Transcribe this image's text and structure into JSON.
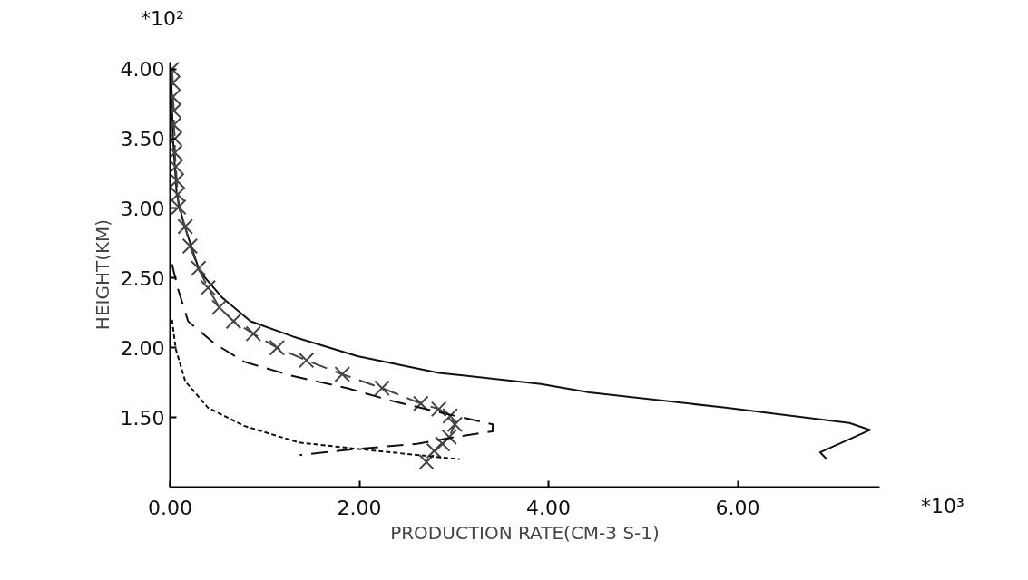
{
  "chart_data": {
    "type": "line",
    "xlabel": "PRODUCTION RATE(CM-3 S-1)",
    "ylabel": "HEIGHT(KM)",
    "annotations": [
      "*10²",
      "*10³"
    ],
    "xlim": [
      0,
      7.5
    ],
    "ylim": [
      1.0,
      4.05
    ],
    "xticks": [
      {
        "value": 0,
        "label": "0.00"
      },
      {
        "value": 2,
        "label": "2.00"
      },
      {
        "value": 4,
        "label": "4.00"
      },
      {
        "value": 6,
        "label": "6.00"
      }
    ],
    "yticks": [
      {
        "value": 1.5,
        "label": "1.50"
      },
      {
        "value": 2,
        "label": "2.00"
      },
      {
        "value": 2.5,
        "label": "2.50"
      },
      {
        "value": 3,
        "label": "3.00"
      },
      {
        "value": 3.5,
        "label": "3.50"
      },
      {
        "value": 4,
        "label": "4.00"
      }
    ],
    "grid": false,
    "series": [
      {
        "color": "#111111",
        "line_style": "solid",
        "marker": "none",
        "x": [
          0.01,
          0.03,
          0.07,
          0.14,
          0.31,
          0.55,
          0.85,
          1.3,
          1.98,
          2.84,
          3.92,
          4.43,
          5.87,
          7.18,
          7.4,
          6.87,
          6.94
        ],
        "values": [
          4.0,
          3.5,
          3.1,
          2.9,
          2.55,
          2.36,
          2.19,
          2.08,
          1.94,
          1.82,
          1.74,
          1.68,
          1.57,
          1.46,
          1.41,
          1.25,
          1.2
        ]
      },
      {
        "color": "#444444",
        "line_style": "dashed",
        "marker": "cross",
        "x": [
          0.02,
          0.03,
          0.03,
          0.04,
          0.04,
          0.05,
          0.05,
          0.06,
          0.07,
          0.08,
          0.09,
          0.16,
          0.21,
          0.3,
          0.4,
          0.52,
          0.67,
          0.88,
          1.13,
          1.44,
          1.82,
          2.24,
          2.65,
          2.84,
          2.96,
          3.01,
          2.95,
          2.88,
          2.79,
          2.71
        ],
        "values": [
          4.0,
          3.9,
          3.8,
          3.7,
          3.6,
          3.5,
          3.4,
          3.3,
          3.2,
          3.1,
          3.01,
          2.87,
          2.73,
          2.57,
          2.43,
          2.29,
          2.19,
          2.1,
          2.0,
          1.91,
          1.81,
          1.71,
          1.6,
          1.56,
          1.51,
          1.45,
          1.36,
          1.31,
          1.26,
          1.18
        ]
      },
      {
        "color": "#111111",
        "line_style": "dashed",
        "marker": "none",
        "x": [
          0.02,
          0.08,
          0.19,
          0.47,
          0.78,
          1.28,
          1.87,
          2.34,
          2.89,
          3.41,
          3.41,
          3.02,
          2.61,
          1.91,
          1.37
        ],
        "values": [
          2.6,
          2.43,
          2.19,
          2.03,
          1.9,
          1.8,
          1.71,
          1.62,
          1.53,
          1.45,
          1.4,
          1.36,
          1.31,
          1.27,
          1.23
        ]
      },
      {
        "color": "#111111",
        "line_style": "dotted",
        "marker": "none",
        "x": [
          0.02,
          0.06,
          0.16,
          0.4,
          0.78,
          1.36,
          2.04,
          3.06
        ],
        "values": [
          2.2,
          1.99,
          1.76,
          1.57,
          1.44,
          1.32,
          1.27,
          1.2
        ]
      }
    ]
  }
}
